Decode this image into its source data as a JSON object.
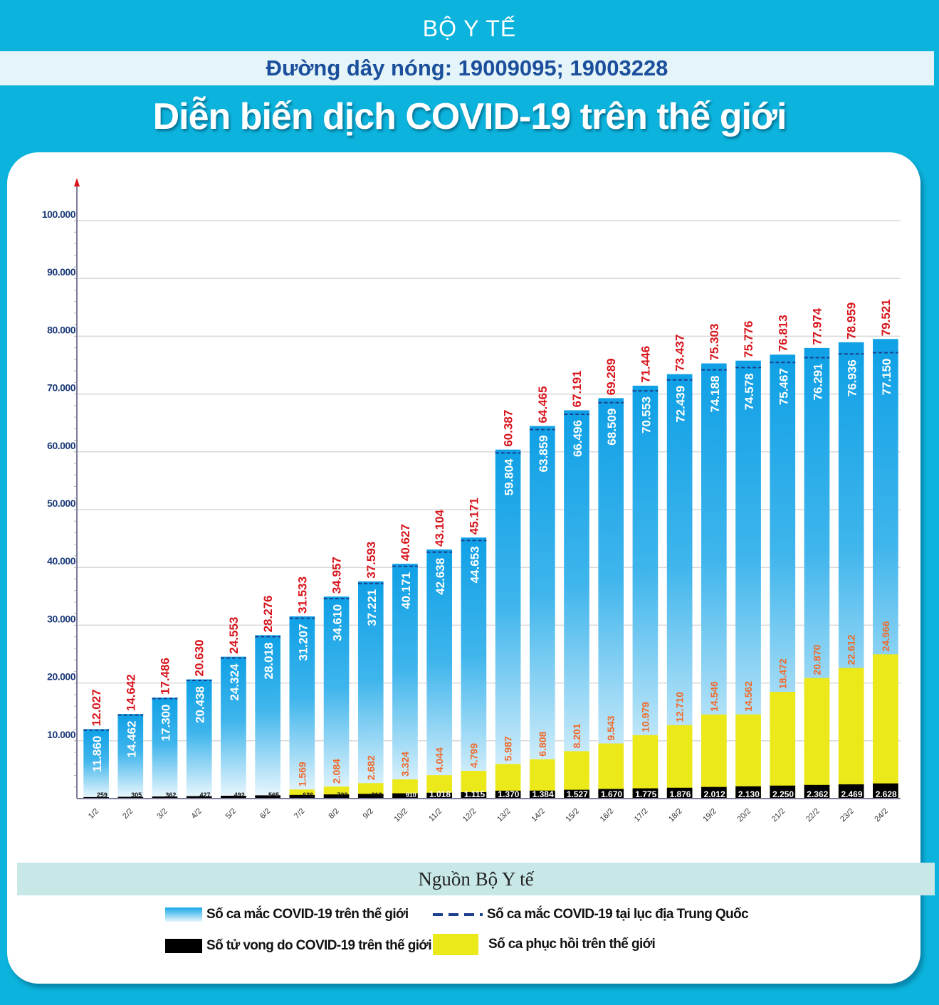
{
  "header": {
    "org": "BỘ Y TẾ",
    "hotline": "Đường dây nóng: 19009095; 19003228",
    "title": "Diễn biến  dịch COVID-19 trên thế giới"
  },
  "source": "Nguồn Bộ Y tế",
  "colors": {
    "background": "#0cb3dc",
    "world_cases": "#1ea7e6",
    "china_dash": "#1b3f8c",
    "deaths": "#000000",
    "recovered": "#ece91a",
    "world_label": "#d7141c",
    "recovered_label": "#f06a2a",
    "axis_label": "#1b3a7a"
  },
  "legend": [
    {
      "key": "world",
      "label": "Số ca mắc COVID-19 trên thế giới"
    },
    {
      "key": "china",
      "label": "Số ca mắc COVID-19 tại  lục địa Trung Quốc"
    },
    {
      "key": "deaths",
      "label": "Số tử vong do COVID-19 trên thế giới"
    },
    {
      "key": "recovered",
      "label": "Số ca phục hồi trên thế giới"
    }
  ],
  "chart_data": {
    "type": "bar",
    "title": "Diễn biến  dịch COVID-19 trên thế giới",
    "xlabel": "",
    "ylabel": "",
    "ylim": [
      0,
      100000
    ],
    "yticks": [
      10000,
      20000,
      30000,
      40000,
      50000,
      60000,
      70000,
      80000,
      90000,
      100000
    ],
    "ytick_labels": [
      "10.000",
      "20.000",
      "30.000",
      "40.000",
      "50.000",
      "60.000",
      "70.000",
      "80.000",
      "90.000",
      "100.000"
    ],
    "grid": true,
    "legend_position": "bottom",
    "categories": [
      "1/2",
      "2/2",
      "3/2",
      "4/2",
      "5/2",
      "6/2",
      "7/2",
      "8/2",
      "9/2",
      "10/2",
      "11/2",
      "12/2",
      "13/2",
      "14/2",
      "15/2",
      "16/2",
      "17/2",
      "18/2",
      "19/2",
      "20/2",
      "21/2",
      "22/2",
      "23/2",
      "24/2"
    ],
    "series": [
      {
        "name": "Số ca mắc COVID-19 trên thế giới",
        "key": "world",
        "values": [
          12027,
          14642,
          17486,
          20630,
          24553,
          28276,
          31533,
          34957,
          37593,
          40627,
          43104,
          45171,
          60387,
          64465,
          67191,
          69289,
          71446,
          73437,
          75303,
          75776,
          76813,
          77974,
          78959,
          79521
        ],
        "labels": [
          "12.027",
          "14.642",
          "17.486",
          "20.630",
          "24.553",
          "28.276",
          "31.533",
          "34.957",
          "37.593",
          "40.627",
          "43.104",
          "45.171",
          "60.387",
          "64.465",
          "67.191",
          "69.289",
          "71.446",
          "73.437",
          "75.303",
          "75.776",
          "76.813",
          "77.974",
          "78.959",
          "79.521"
        ]
      },
      {
        "name": "Số ca mắc COVID-19 tại  lục địa Trung Quốc",
        "key": "china",
        "values": [
          11860,
          14462,
          17300,
          20438,
          24324,
          28018,
          31207,
          34610,
          37221,
          40171,
          42638,
          44653,
          59804,
          63859,
          66496,
          68509,
          70553,
          72439,
          74188,
          74578,
          75467,
          76291,
          76936,
          77150
        ],
        "labels": [
          "11.860",
          "14.462",
          "17.300",
          "20.438",
          "24.324",
          "28.018",
          "31.207",
          "34.610",
          "37.221",
          "40.171",
          "42.638",
          "44.653",
          "59.804",
          "63.859",
          "66.496",
          "68.509",
          "70.553",
          "72.439",
          "74.188",
          "74.578",
          "75.467",
          "76.291",
          "76.936",
          "77.150"
        ]
      },
      {
        "name": "Số ca phục hồi trên thế giới",
        "key": "recovered",
        "values": [
          null,
          null,
          null,
          null,
          null,
          null,
          1569,
          2084,
          2682,
          3324,
          4044,
          4799,
          5987,
          6808,
          8201,
          9543,
          10979,
          12710,
          14546,
          14562,
          18472,
          20870,
          22612,
          24966
        ],
        "labels": [
          "",
          "",
          "",
          "",
          "",
          "",
          "1.569",
          "2.084",
          "2.682",
          "3.324",
          "4.044",
          "4.799",
          "5.987",
          "6.808",
          "8.201",
          "9.543",
          "10.979",
          "12.710",
          "14.546",
          "14.562",
          "18.472",
          "20.870",
          "22.612",
          "24.966"
        ]
      },
      {
        "name": "Số tử vong do COVID-19 trên thế giới",
        "key": "deaths",
        "values": [
          259,
          305,
          362,
          427,
          492,
          565,
          636,
          722,
          813,
          910,
          1018,
          1115,
          1370,
          1384,
          1527,
          1670,
          1775,
          1876,
          2012,
          2130,
          2250,
          2362,
          2469,
          2628
        ],
        "labels": [
          "259",
          "305",
          "362",
          "427",
          "492",
          "565",
          "636",
          "722",
          "813",
          "910",
          "1.018",
          "1.115",
          "1.370",
          "1.384",
          "1.527",
          "1.670",
          "1.775",
          "1.876",
          "2.012",
          "2.130",
          "2.250",
          "2.362",
          "2.469",
          "2.628"
        ]
      }
    ]
  }
}
